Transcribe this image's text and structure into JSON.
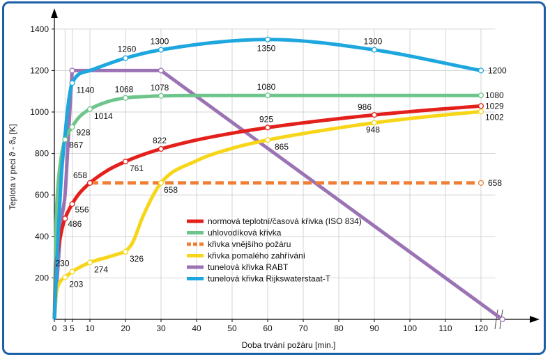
{
  "chart_data": {
    "type": "line",
    "xlabel": "Doba trvání požáru [min.]",
    "ylabel": "Teplota v peci ϑ - ϑ₀ [K]",
    "xlim": [
      0,
      140
    ],
    "ylim": [
      0,
      1400
    ],
    "x_ticks": [
      0,
      3,
      5,
      10,
      20,
      30,
      40,
      50,
      60,
      70,
      80,
      90,
      100,
      110,
      120
    ],
    "y_ticks": [
      200,
      400,
      600,
      800,
      1000,
      1200,
      1400
    ],
    "grid": true,
    "legend_position": "center",
    "series": [
      {
        "name": "normová teplotní/časová křivka (ISO 834)",
        "color": "#e3201b",
        "style": "solid",
        "x": [
          0,
          0.5,
          1,
          2,
          3,
          5,
          7,
          10,
          15,
          20,
          25,
          30,
          40,
          50,
          60,
          75,
          90,
          105,
          120
        ],
        "y": [
          0,
          250,
          329,
          425,
          486,
          556,
          607,
          658,
          719,
          761,
          795,
          822,
          865,
          898,
          925,
          958,
          986,
          1009,
          1029
        ],
        "markers": [
          {
            "x": 3,
            "y": 486,
            "label": "486"
          },
          {
            "x": 5,
            "y": 556,
            "label": "556"
          },
          {
            "x": 10,
            "y": 658,
            "label": "658"
          },
          {
            "x": 20,
            "y": 761,
            "label": "761"
          },
          {
            "x": 30,
            "y": 822,
            "label": "822"
          },
          {
            "x": 60,
            "y": 925,
            "label": "925"
          },
          {
            "x": 90,
            "y": 986,
            "label": "986"
          },
          {
            "x": 120,
            "y": 1029,
            "label": "1029"
          }
        ]
      },
      {
        "name": "uhlovodíková křivka",
        "color": "#6ec58c",
        "style": "solid",
        "x": [
          0,
          0.5,
          1,
          2,
          3,
          5,
          7,
          10,
          15,
          20,
          25,
          30,
          40,
          60,
          90,
          120
        ],
        "y": [
          0,
          470,
          640,
          790,
          867,
          928,
          976,
          1014,
          1050,
          1068,
          1074,
          1078,
          1080,
          1080,
          1080,
          1080
        ],
        "markers": [
          {
            "x": 3,
            "y": 867,
            "label": "867"
          },
          {
            "x": 5,
            "y": 928,
            "label": "928"
          },
          {
            "x": 10,
            "y": 1014,
            "label": "1014"
          },
          {
            "x": 20,
            "y": 1068,
            "label": "1068"
          },
          {
            "x": 30,
            "y": 1078,
            "label": "1078"
          },
          {
            "x": 60,
            "y": 1080,
            "label": "1080"
          },
          {
            "x": 120,
            "y": 1080,
            "label": "1080"
          }
        ]
      },
      {
        "name": "křivka vnějšího požáru",
        "color": "#f07f35",
        "style": "dashed",
        "x": [
          10,
          120
        ],
        "y": [
          658,
          658
        ],
        "markers": [
          {
            "x": 120,
            "y": 658,
            "label": "658"
          }
        ]
      },
      {
        "name": "křivka pomalého zahřívání",
        "color": "#f7d619",
        "style": "solid",
        "x": [
          0,
          0.5,
          1,
          2,
          3,
          5,
          10,
          15,
          20,
          22,
          25,
          30,
          40,
          50,
          60,
          75,
          90,
          105,
          120
        ],
        "y": [
          0,
          120,
          160,
          190,
          203,
          230,
          274,
          300,
          326,
          370,
          500,
          658,
          765,
          825,
          865,
          910,
          948,
          978,
          1002
        ],
        "markers": [
          {
            "x": 3,
            "y": 203,
            "label": "203"
          },
          {
            "x": 5,
            "y": 230,
            "label": "230"
          },
          {
            "x": 10,
            "y": 274,
            "label": "274"
          },
          {
            "x": 20,
            "y": 326,
            "label": "326"
          },
          {
            "x": 30,
            "y": 658,
            "label": "658"
          },
          {
            "x": 60,
            "y": 865,
            "label": "865"
          },
          {
            "x": 90,
            "y": 948,
            "label": "948"
          },
          {
            "x": 120,
            "y": 1002,
            "label": "1002"
          }
        ]
      },
      {
        "name": "tunelová křivka RABT",
        "color": "#9b73b5",
        "style": "solid",
        "x": [
          0,
          1,
          2,
          3,
          4,
          5,
          30,
          126
        ],
        "y": [
          0,
          250,
          480,
          600,
          900,
          1200,
          1200,
          0
        ],
        "markers": [
          {
            "x": 5,
            "y": 1200,
            "label": ""
          },
          {
            "x": 30,
            "y": 1200,
            "label": ""
          },
          {
            "x": 126,
            "y": 0,
            "label": ""
          }
        ]
      },
      {
        "name": "tunelová křivka Rijkswaterstaat-T",
        "color": "#1ea7df",
        "style": "solid",
        "x": [
          0,
          1,
          2,
          3,
          4,
          5,
          10,
          20,
          30,
          60,
          90,
          120
        ],
        "y": [
          0,
          380,
          700,
          890,
          1050,
          1140,
          1200,
          1260,
          1300,
          1350,
          1300,
          1200
        ],
        "markers": [
          {
            "x": 5,
            "y": 1140,
            "label": "1140"
          },
          {
            "x": 20,
            "y": 1260,
            "label": "1260"
          },
          {
            "x": 30,
            "y": 1300,
            "label": "1300"
          },
          {
            "x": 60,
            "y": 1350,
            "label": "1350"
          },
          {
            "x": 90,
            "y": 1300,
            "label": "1300"
          },
          {
            "x": 120,
            "y": 1200,
            "label": "1200"
          }
        ]
      }
    ]
  }
}
